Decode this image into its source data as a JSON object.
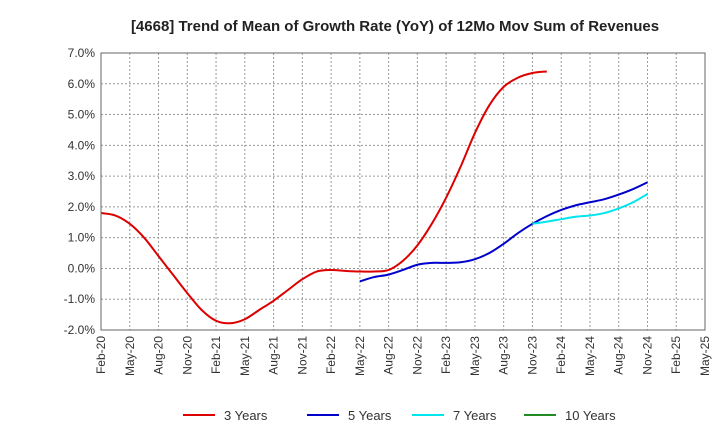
{
  "chart_data": {
    "type": "line",
    "title": "[4668]  Trend of Mean of Growth Rate (YoY) of 12Mo Mov Sum of Revenues",
    "xlabel": "",
    "ylabel": "",
    "ylim": [
      -2.0,
      7.0
    ],
    "y_ticks": [
      -2.0,
      -1.0,
      0.0,
      1.0,
      2.0,
      3.0,
      4.0,
      5.0,
      6.0,
      7.0
    ],
    "y_tick_labels": [
      "-2.0%",
      "-1.0%",
      "0.0%",
      "1.0%",
      "2.0%",
      "3.0%",
      "4.0%",
      "5.0%",
      "6.0%",
      "7.0%"
    ],
    "x_tick_labels": [
      "Feb-20",
      "May-20",
      "Aug-20",
      "Nov-20",
      "Feb-21",
      "May-21",
      "Aug-21",
      "Nov-21",
      "Feb-22",
      "May-22",
      "Aug-22",
      "Nov-22",
      "Feb-23",
      "May-23",
      "Aug-23",
      "Nov-23",
      "Feb-24",
      "May-24",
      "Aug-24",
      "Nov-24",
      "Feb-25",
      "May-25"
    ],
    "grid": true,
    "legend_position": "bottom",
    "series": [
      {
        "name": "3 Years",
        "color": "#dd0000",
        "start_index": 0,
        "values": [
          1.8,
          1.72,
          1.45,
          1.0,
          0.4,
          -0.2,
          -0.8,
          -1.35,
          -1.7,
          -1.78,
          -1.65,
          -1.35,
          -1.05,
          -0.7,
          -0.35,
          -0.1,
          -0.05,
          -0.08,
          -0.1,
          -0.1,
          -0.05,
          0.25,
          0.75,
          1.45,
          2.3,
          3.3,
          4.4,
          5.3,
          5.9,
          6.2,
          6.35,
          6.4
        ]
      },
      {
        "name": "5 Years",
        "color": "#0000cc",
        "start_index": 18,
        "values": [
          -0.42,
          -0.28,
          -0.2,
          -0.05,
          0.12,
          0.18,
          0.18,
          0.2,
          0.3,
          0.5,
          0.8,
          1.15,
          1.45,
          1.7,
          1.9,
          2.05,
          2.15,
          2.25,
          2.4,
          2.58,
          2.8
        ]
      },
      {
        "name": "7 Years",
        "color": "#00e5ee",
        "start_index": 30,
        "values": [
          1.45,
          1.52,
          1.6,
          1.68,
          1.72,
          1.8,
          1.95,
          2.15,
          2.42
        ]
      },
      {
        "name": "10 Years",
        "color": "#228b22",
        "start_index": 0,
        "values": []
      }
    ]
  }
}
